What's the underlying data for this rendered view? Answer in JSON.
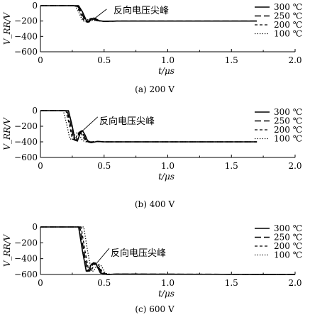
{
  "chart_data": [
    {
      "type": "line",
      "caption": "(a)  200 V",
      "title": "",
      "xlabel": "t/μs",
      "ylabel": "V_RR/V",
      "xlim": [
        0,
        2.0
      ],
      "ylim": [
        -600,
        0
      ],
      "xticks": [
        "0",
        "0.5",
        "1.0",
        "1.5",
        "2.0"
      ],
      "yticks": [
        "0",
        "−200",
        "−400",
        "−600"
      ],
      "annotation": "反向电压尖峰",
      "legend_position": "right",
      "grid": false,
      "series": [
        {
          "name": "300 ℃",
          "style": "solid",
          "x": [
            0,
            0.3,
            0.33,
            0.36,
            0.38,
            0.4,
            0.42,
            0.44,
            0.46,
            0.5,
            0.6,
            1.7
          ],
          "y": [
            0,
            0,
            -80,
            -190,
            -215,
            -175,
            -160,
            -175,
            -195,
            -205,
            -200,
            -200
          ]
        },
        {
          "name": "250 ℃",
          "style": "longdash",
          "x": [
            0,
            0.29,
            0.32,
            0.35,
            0.37,
            0.39,
            0.41,
            0.43,
            0.45,
            0.5,
            0.6,
            1.7
          ],
          "y": [
            0,
            0,
            -80,
            -190,
            -215,
            -178,
            -163,
            -178,
            -196,
            -205,
            -200,
            -200
          ]
        },
        {
          "name": "200 ℃",
          "style": "dash",
          "x": [
            0,
            0.28,
            0.31,
            0.34,
            0.36,
            0.38,
            0.4,
            0.42,
            0.44,
            0.5,
            0.6,
            1.7
          ],
          "y": [
            0,
            0,
            -80,
            -190,
            -212,
            -180,
            -165,
            -180,
            -196,
            -203,
            -200,
            -200
          ]
        },
        {
          "name": "100 ℃",
          "style": "dotted",
          "x": [
            0,
            0.27,
            0.3,
            0.33,
            0.35,
            0.37,
            0.39,
            0.41,
            0.43,
            0.5,
            0.6,
            1.7
          ],
          "y": [
            0,
            0,
            -80,
            -190,
            -210,
            -182,
            -170,
            -182,
            -196,
            -203,
            -200,
            -200
          ]
        }
      ]
    },
    {
      "type": "line",
      "caption": "(b)  400 V",
      "title": "",
      "xlabel": "t/μs",
      "ylabel": "V_RR/V",
      "xlim": [
        0,
        2.0
      ],
      "ylim": [
        -600,
        0
      ],
      "xticks": [
        "0",
        "0.5",
        "1.0",
        "1.5",
        "2.0"
      ],
      "yticks": [
        "0",
        "−200",
        "−400",
        "−600"
      ],
      "annotation": "反向电压尖峰",
      "legend_position": "right",
      "grid": false,
      "series": [
        {
          "name": "300 ℃",
          "style": "solid",
          "x": [
            0,
            0.22,
            0.25,
            0.27,
            0.29,
            0.31,
            0.33,
            0.35,
            0.37,
            0.4,
            0.45,
            0.5,
            1.7
          ],
          "y": [
            0,
            0,
            -200,
            -370,
            -390,
            -300,
            -255,
            -310,
            -385,
            -410,
            -395,
            -400,
            -400
          ]
        },
        {
          "name": "250 ℃",
          "style": "longdash",
          "x": [
            0,
            0.21,
            0.24,
            0.26,
            0.28,
            0.3,
            0.32,
            0.34,
            0.36,
            0.39,
            0.44,
            0.5,
            1.7
          ],
          "y": [
            0,
            0,
            -200,
            -365,
            -385,
            -300,
            -260,
            -315,
            -385,
            -408,
            -395,
            -400,
            -400
          ]
        },
        {
          "name": "200 ℃",
          "style": "dash",
          "x": [
            0,
            0.2,
            0.23,
            0.25,
            0.27,
            0.29,
            0.31,
            0.33,
            0.35,
            0.38,
            0.43,
            0.5,
            1.7
          ],
          "y": [
            0,
            0,
            -200,
            -360,
            -380,
            -305,
            -265,
            -318,
            -385,
            -405,
            -395,
            -400,
            -400
          ]
        },
        {
          "name": "100 ℃",
          "style": "dotted",
          "x": [
            0,
            0.18,
            0.21,
            0.23,
            0.25,
            0.27,
            0.29,
            0.31,
            0.33,
            0.36,
            0.41,
            0.5,
            1.7
          ],
          "y": [
            0,
            0,
            -200,
            -355,
            -375,
            -310,
            -275,
            -320,
            -383,
            -402,
            -396,
            -400,
            -400
          ]
        }
      ]
    },
    {
      "type": "line",
      "caption": "(c)  600 V",
      "title": "",
      "xlabel": "t/μs",
      "ylabel": "V_RR/V",
      "xlim": [
        0,
        2.0
      ],
      "ylim": [
        -600,
        0
      ],
      "xticks": [
        "0",
        "0.5",
        "1.0",
        "1.5",
        "2.0"
      ],
      "yticks": [
        "0",
        "−200",
        "−400",
        "−600"
      ],
      "annotation": "反向电压尖峰",
      "legend_position": "right",
      "grid": false,
      "series": [
        {
          "name": "300 ℃",
          "style": "solid",
          "x": [
            0,
            0.3,
            0.33,
            0.36,
            0.38,
            0.4,
            0.42,
            0.44,
            0.47,
            0.52,
            0.6,
            2.0
          ],
          "y": [
            0,
            0,
            -300,
            -560,
            -540,
            -470,
            -450,
            -480,
            -580,
            -600,
            -595,
            -600
          ]
        },
        {
          "name": "250 ℃",
          "style": "longdash",
          "x": [
            0,
            0.31,
            0.34,
            0.37,
            0.39,
            0.41,
            0.43,
            0.45,
            0.48,
            0.53,
            0.6,
            2.0
          ],
          "y": [
            0,
            0,
            -300,
            -560,
            -545,
            -475,
            -455,
            -485,
            -580,
            -600,
            -595,
            -600
          ]
        },
        {
          "name": "200 ℃",
          "style": "dash",
          "x": [
            0,
            0.32,
            0.35,
            0.38,
            0.4,
            0.42,
            0.44,
            0.46,
            0.49,
            0.54,
            0.6,
            2.0
          ],
          "y": [
            0,
            0,
            -300,
            -560,
            -550,
            -480,
            -460,
            -490,
            -582,
            -600,
            -596,
            -600
          ]
        },
        {
          "name": "100 ℃",
          "style": "dotted",
          "x": [
            0,
            0.34,
            0.37,
            0.4,
            0.42,
            0.44,
            0.46,
            0.48,
            0.51,
            0.56,
            0.6,
            2.0
          ],
          "y": [
            0,
            0,
            -300,
            -560,
            -555,
            -490,
            -470,
            -495,
            -585,
            -600,
            -597,
            -600
          ]
        }
      ]
    }
  ]
}
